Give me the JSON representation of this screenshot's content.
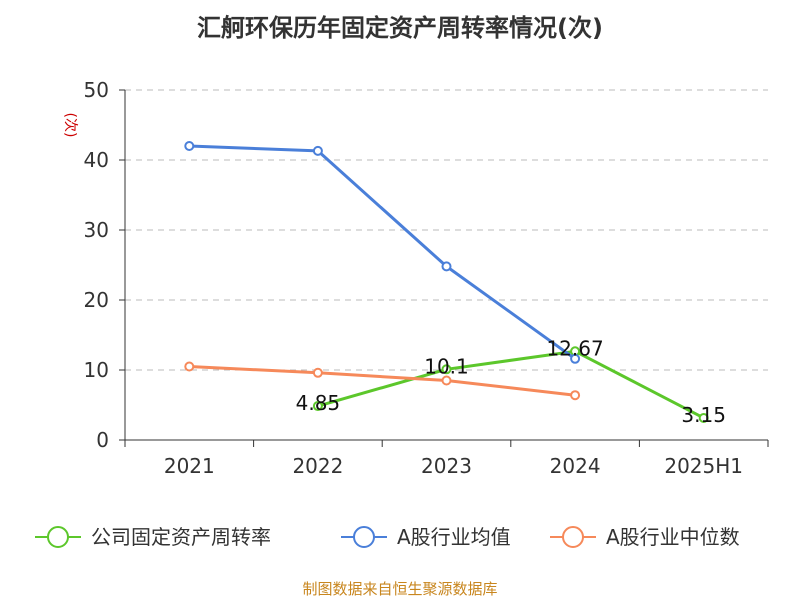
{
  "title": "汇舸环保历年固定资产周转率情况(次)",
  "source": "制图数据来自恒生聚源数据库",
  "chart_data": {
    "type": "line",
    "title": "汇舸环保历年固定资产周转率情况(次)",
    "ylabel": "(次)",
    "categories": [
      "2021",
      "2022",
      "2023",
      "2024",
      "2025H1"
    ],
    "ylim": [
      0,
      50
    ],
    "yticks": [
      0,
      10,
      20,
      30,
      40,
      50
    ],
    "grid": true,
    "legend_position": "bottom",
    "series": [
      {
        "name": "公司固定资产周转率",
        "color": "#5cc72b",
        "values": [
          null,
          4.85,
          10.1,
          12.67,
          3.15
        ],
        "labels": [
          "",
          "4.85",
          "10.1",
          "12.67",
          "3.15"
        ]
      },
      {
        "name": "A股行业均值",
        "color": "#4a7fd9",
        "values": [
          42.0,
          41.3,
          24.8,
          11.6,
          null
        ]
      },
      {
        "name": "A股行业中位数",
        "color": "#f6895a",
        "values": [
          10.5,
          9.6,
          8.5,
          6.4,
          null
        ]
      }
    ]
  }
}
